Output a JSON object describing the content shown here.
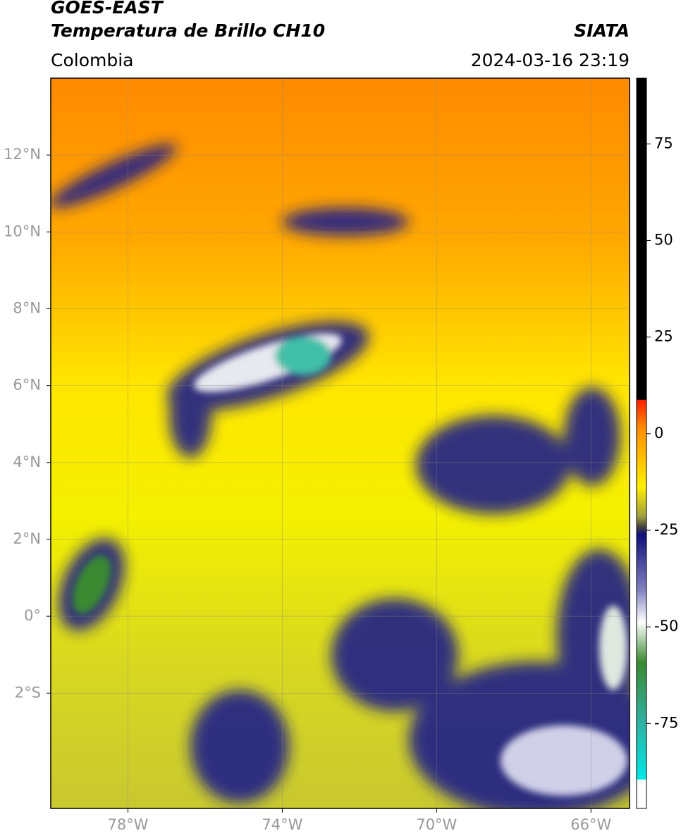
{
  "header": {
    "satellite": "GOES-EAST",
    "product": "Temperatura de Brillo CH10",
    "region": "Colombia",
    "source": "SIATA",
    "datetime": "2024-03-16 23:19"
  },
  "map": {
    "xlim": [
      -80,
      -65
    ],
    "ylim": [
      -5,
      14
    ],
    "xticks": [
      {
        "value": -78,
        "label": "78°W"
      },
      {
        "value": -74,
        "label": "74°W"
      },
      {
        "value": -70,
        "label": "70°W"
      },
      {
        "value": -66,
        "label": "66°W"
      }
    ],
    "yticks": [
      {
        "value": 12,
        "label": "12°N"
      },
      {
        "value": 10,
        "label": "10°N"
      },
      {
        "value": 8,
        "label": "8°N"
      },
      {
        "value": 6,
        "label": "6°N"
      },
      {
        "value": 4,
        "label": "4°N"
      },
      {
        "value": 2,
        "label": "2°N"
      },
      {
        "value": 0,
        "label": "0°"
      },
      {
        "value": -2,
        "label": "2°S"
      }
    ]
  },
  "colorbar": {
    "lim": [
      -97,
      92
    ],
    "ticks": [
      75,
      50,
      25,
      0,
      -25,
      -50,
      -75
    ]
  }
}
